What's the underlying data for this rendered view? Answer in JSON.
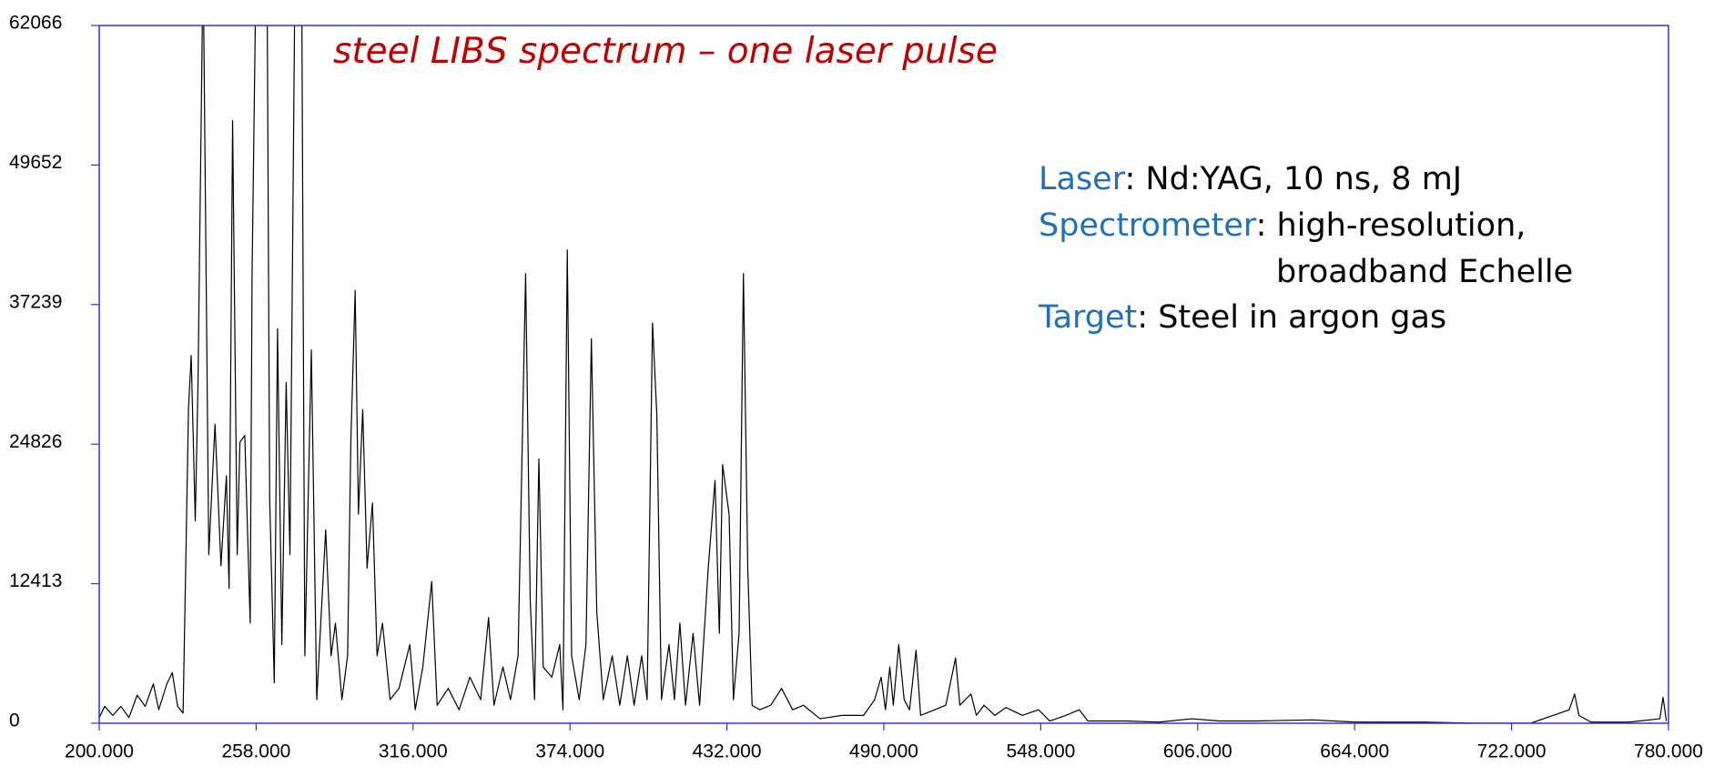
{
  "chart_data": {
    "type": "line",
    "title": "steel LIBS spectrum – one laser pulse",
    "info": [
      {
        "key": "Laser",
        "text": ": Nd:YAG, 10 ns, 8 mJ"
      },
      {
        "key": "Spectrometer",
        "text": ": high-resolution,"
      },
      {
        "text": "broadband Echelle"
      },
      {
        "key": "Target",
        "text": ": Steel in argon gas"
      }
    ],
    "color": "#000000",
    "axis_color": "#3333dd",
    "key_color": "#1f6fbf",
    "title_color": "#c00000",
    "x": [
      200,
      202,
      205,
      208,
      211,
      214,
      217,
      220,
      222,
      225,
      227,
      229,
      231,
      233,
      234,
      235.5,
      236.5,
      238.4,
      240.5,
      242.8,
      245,
      247,
      248,
      249.3,
      251,
      252,
      253.8,
      255.8,
      256.5,
      258,
      262,
      263,
      264.7,
      265.9,
      267.5,
      269.1,
      270.5,
      272.4,
      274.8,
      276,
      278.4,
      280.4,
      283.7,
      285.7,
      287.3,
      289.7,
      291.8,
      293,
      294.6,
      295.8,
      297.4,
      299,
      301,
      302.7,
      304.7,
      307.5,
      310.8,
      314.8,
      316.8,
      319.6,
      322.9,
      324.9,
      329,
      333,
      337,
      341,
      343.9,
      345.9,
      349.2,
      352,
      354.8,
      357.6,
      359.3,
      360.9,
      362.5,
      364.1,
      367.3,
      370.2,
      371.4,
      373,
      374.6,
      377.4,
      379.9,
      381.9,
      383.9,
      386.3,
      389.6,
      392.4,
      395.2,
      397.7,
      400.5,
      402.5,
      404.5,
      406.1,
      407.8,
      410.6,
      412.6,
      414.6,
      416.7,
      419.5,
      421.9,
      425.1,
      427.6,
      429.2,
      430.4,
      432.8,
      434.4,
      436.5,
      438.1,
      439.7,
      441.3,
      444.1,
      448.2,
      452.2,
      456.3,
      460.3,
      466.4,
      474.5,
      482.5,
      486.6,
      489,
      490.6,
      492.2,
      493.5,
      495.5,
      497.5,
      499.5,
      501.9,
      503.6,
      508.8,
      512.9,
      516.5,
      518.1,
      522.2,
      524.2,
      527,
      531,
      535.1,
      541.2,
      547.2,
      551.3,
      557.3,
      562.2,
      565.4,
      579.5,
      591.7,
      603.8,
      613.9,
      628,
      648.3,
      664.4,
      688.7,
      708.9,
      729.1,
      743.3,
      745.3,
      746.9,
      751.3,
      765.5,
      776.8,
      778,
      779.2
    ],
    "values": [
      500,
      1500,
      700,
      1500,
      500,
      2500,
      1500,
      3500,
      1200,
      3500,
      4500,
      1500,
      900,
      28000,
      32700,
      18000,
      30000,
      68000,
      15000,
      26600,
      14000,
      22000,
      12000,
      53600,
      15000,
      25000,
      25600,
      8900,
      40000,
      68000,
      68000,
      20000,
      3600,
      35100,
      7000,
      30300,
      15000,
      68000,
      68000,
      6000,
      33200,
      2100,
      17200,
      6000,
      8900,
      2100,
      6000,
      25000,
      38500,
      18600,
      27900,
      13800,
      19600,
      6000,
      8900,
      2100,
      3100,
      7000,
      1200,
      5000,
      12600,
      1600,
      3100,
      1200,
      4100,
      2100,
      9400,
      1600,
      5000,
      2100,
      6000,
      40000,
      10900,
      2100,
      23500,
      5000,
      4100,
      7000,
      1200,
      42100,
      6000,
      2100,
      7000,
      34200,
      9900,
      2100,
      6000,
      1600,
      6000,
      1600,
      6000,
      2100,
      35600,
      27400,
      2100,
      7000,
      2100,
      8900,
      1600,
      8000,
      1600,
      13800,
      21600,
      8000,
      23000,
      18600,
      2100,
      8000,
      40000,
      13800,
      1600,
      1200,
      1600,
      3100,
      1200,
      1600,
      400,
      700,
      700,
      2100,
      4100,
      1200,
      5000,
      1600,
      7000,
      2100,
      1200,
      6500,
      700,
      1200,
      1600,
      5800,
      1600,
      2600,
      700,
      1600,
      700,
      1400,
      700,
      1200,
      200,
      700,
      1200,
      200,
      200,
      100,
      400,
      200,
      200,
      300,
      100,
      100,
      0,
      0,
      1200,
      2600,
      700,
      100,
      100,
      400,
      2300,
      200
    ],
    "xlim": [
      200,
      780
    ],
    "ylim": [
      0,
      62066
    ],
    "xticks": [
      {
        "value": 200,
        "label": "200.000"
      },
      {
        "value": 258,
        "label": "258.000"
      },
      {
        "value": 316,
        "label": "316.000"
      },
      {
        "value": 374,
        "label": "374.000"
      },
      {
        "value": 432,
        "label": "432.000"
      },
      {
        "value": 490,
        "label": "490.000"
      },
      {
        "value": 548,
        "label": "548.000"
      },
      {
        "value": 606,
        "label": "606.000"
      },
      {
        "value": 664,
        "label": "664.000"
      },
      {
        "value": 722,
        "label": "722.000"
      },
      {
        "value": 780,
        "label": "780.000"
      }
    ],
    "yticks": [
      0,
      12413,
      24826,
      37239,
      49652,
      62066
    ]
  }
}
